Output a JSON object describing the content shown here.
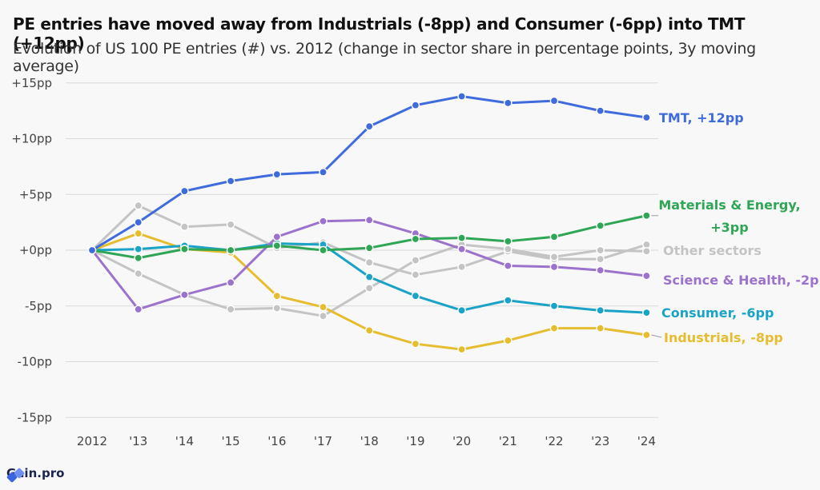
{
  "header": {
    "title": "PE entries have moved away from Industrials (-8pp) and Consumer (-6pp) into TMT (+12pp)",
    "subtitle": "Evolution of US 100 PE entries (#) vs. 2012 (change in sector share in percentage points, 3y moving average)"
  },
  "brand": {
    "name": "Gain.pro",
    "icon": "gain-pro-logo-icon",
    "color": "#3b64e0"
  },
  "chart_data": {
    "type": "line",
    "title": "PE entries have moved away from Industrials (-8pp) and Consumer (-6pp) into TMT (+12pp)",
    "subtitle": "Evolution of US 100 PE entries (#) vs. 2012 (change in sector share in percentage points, 3y moving average)",
    "categories": [
      "2012",
      "'13",
      "'14",
      "'15",
      "'16",
      "'17",
      "'18",
      "'19",
      "'20",
      "'21",
      "'22",
      "'23",
      "'24"
    ],
    "yticks": [
      15,
      10,
      5,
      0,
      -5,
      -10,
      -15
    ],
    "ytick_labels": [
      "+15pp",
      "+10pp",
      "+5pp",
      "+0pp",
      "-5pp",
      "-10pp",
      "-15pp"
    ],
    "ylim": [
      -15,
      15
    ],
    "grid": true,
    "series": [
      {
        "name": "Other sectors",
        "color": "#c4c4c4",
        "values": [
          0,
          4.0,
          2.1,
          2.3,
          0.2,
          0.7,
          -1.1,
          -2.2,
          -1.5,
          -0.1,
          -0.8,
          -0.8,
          0.5
        ]
      },
      {
        "name": "Other sectors",
        "color": "#c4c4c4",
        "values": [
          0,
          -2.1,
          -4.0,
          -5.3,
          -5.2,
          -5.9,
          -3.4,
          -0.9,
          0.5,
          0.1,
          -0.6,
          0.0,
          -0.1
        ]
      },
      {
        "name": "Industrials, -8pp",
        "color": "#e6bd2f",
        "values": [
          0,
          1.5,
          0.1,
          -0.2,
          -4.1,
          -5.1,
          -7.2,
          -8.4,
          -8.9,
          -8.1,
          -7.0,
          -7.0,
          -7.6
        ]
      },
      {
        "name": "Consumer, -6pp",
        "color": "#1aa3c6",
        "values": [
          0,
          0.1,
          0.4,
          0.0,
          0.6,
          0.5,
          -2.4,
          -4.1,
          -5.4,
          -4.5,
          -5.0,
          -5.4,
          -5.6
        ]
      },
      {
        "name": "Science & Health, -2pp",
        "color": "#9b72cc",
        "values": [
          0,
          -5.3,
          -4.0,
          -2.9,
          1.2,
          2.6,
          2.7,
          1.5,
          0.1,
          -1.4,
          -1.5,
          -1.8,
          -2.3
        ]
      },
      {
        "name": "Materials & Energy, +3pp",
        "color": "#2fa655",
        "values": [
          0,
          -0.7,
          0.1,
          0.0,
          0.4,
          0.0,
          0.2,
          1.0,
          1.1,
          0.8,
          1.2,
          2.2,
          3.1
        ]
      },
      {
        "name": "TMT, +12pp",
        "color": "#3f6bdc",
        "values": [
          0,
          2.5,
          5.3,
          6.2,
          6.8,
          7.0,
          11.1,
          13.0,
          13.8,
          13.2,
          13.4,
          12.5,
          11.9
        ]
      }
    ],
    "end_labels": [
      {
        "lines": [
          "TMT, +12pp"
        ],
        "color": "#3f6bdc"
      },
      {
        "lines": [
          "Materials & Energy,",
          "+3pp"
        ],
        "color": "#2fa655"
      },
      {
        "lines": [
          "Other sectors"
        ],
        "color": "#c4c4c4"
      },
      {
        "lines": [
          "Science & Health, -2pp"
        ],
        "color": "#9b72cc"
      },
      {
        "lines": [
          "Consumer, -6pp"
        ],
        "color": "#1aa3c6"
      },
      {
        "lines": [
          "Industrials, -8pp"
        ],
        "color": "#e6bd2f"
      }
    ]
  }
}
